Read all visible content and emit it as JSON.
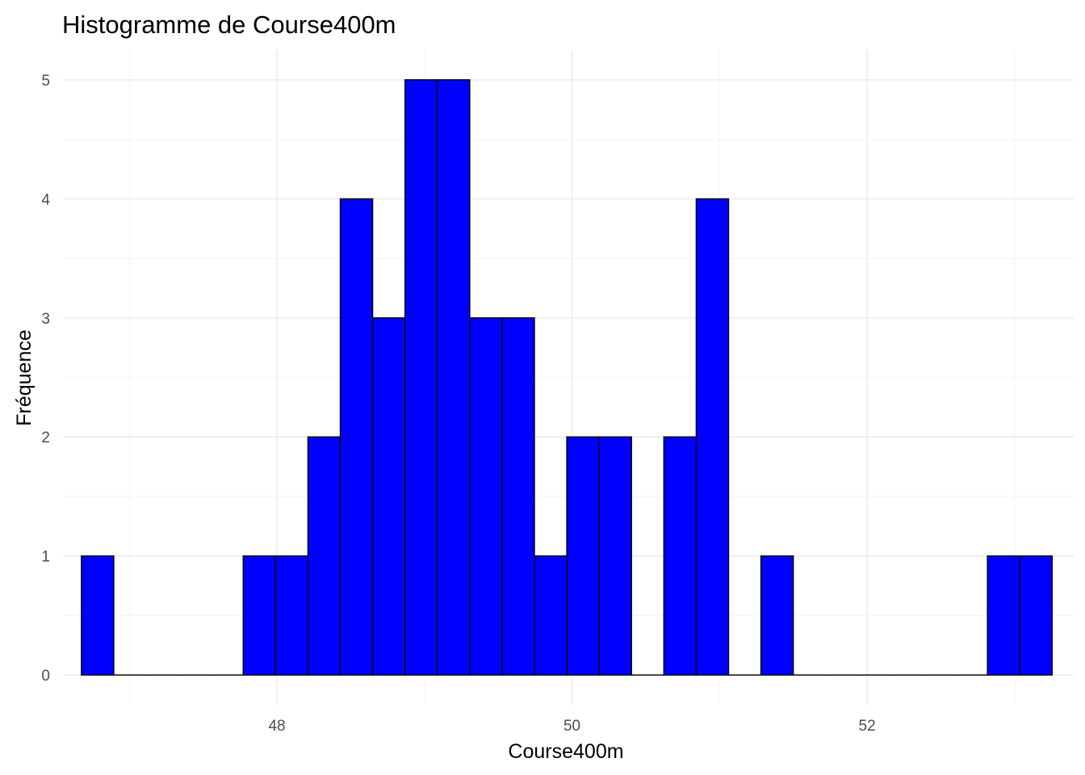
{
  "chart_data": {
    "type": "bar",
    "title": "Histogramme de Course400m",
    "xlabel": "Course400m",
    "ylabel": "Fréquence",
    "bar_color": "#0000ff",
    "edge_color": "#000000",
    "grid": true,
    "xlim": [
      46.55,
      53.4
    ],
    "ylim": [
      -0.25,
      5.25
    ],
    "x_ticks": [
      48,
      50,
      52
    ],
    "y_ticks": [
      0,
      1,
      2,
      3,
      4,
      5
    ],
    "bin_start": 46.675,
    "bin_width": 0.2193,
    "counts": [
      1,
      0,
      0,
      0,
      0,
      1,
      1,
      2,
      4,
      3,
      5,
      5,
      3,
      3,
      1,
      2,
      2,
      0,
      2,
      4,
      0,
      1,
      0,
      0,
      0,
      0,
      0,
      0,
      1,
      1
    ]
  }
}
